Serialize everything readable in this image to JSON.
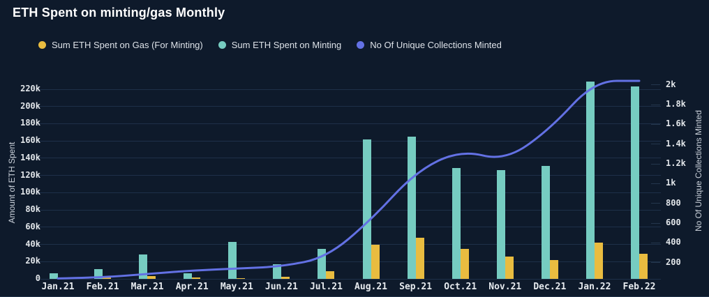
{
  "title": "ETH Spent on minting/gas Monthly",
  "legend": [
    {
      "label": "Sum ETH Spent on Gas (For Minting)",
      "color": "#e9bc40"
    },
    {
      "label": "Sum ETH Spent on Minting",
      "color": "#76ccc1"
    },
    {
      "label": "No Of Unique Collections Minted",
      "color": "#6371e4"
    }
  ],
  "axes": {
    "left": {
      "title": "Amount of ETH Spent",
      "ticks": [
        "0",
        "20k",
        "40k",
        "60k",
        "80k",
        "100k",
        "120k",
        "140k",
        "160k",
        "180k",
        "200k",
        "220k"
      ],
      "range": [
        0,
        220000
      ]
    },
    "right": {
      "title": "No Of Unique Collections Minted",
      "ticks": [
        "200",
        "400",
        "600",
        "800",
        "1k",
        "1.2k",
        "1.4k",
        "1.6k",
        "1.8k",
        "2k"
      ],
      "range": [
        0,
        2000
      ]
    }
  },
  "chart_data": {
    "type": "bar+line",
    "title": "ETH Spent on minting/gas Monthly",
    "categories": [
      "Jan.21",
      "Feb.21",
      "Mar.21",
      "Apr.21",
      "May.21",
      "Jun.21",
      "Jul.21",
      "Aug.21",
      "Sep.21",
      "Oct.21",
      "Nov.21",
      "Dec.21",
      "Jan.22",
      "Feb.22"
    ],
    "xlabel": "",
    "ylabel_left": "Amount of ETH Spent",
    "ylabel_right": "No Of Unique Collections Minted",
    "ylim_left": [
      0,
      220000
    ],
    "ylim_right": [
      0,
      2000
    ],
    "grid": "horizontal",
    "legend_position": "top",
    "background": "#0e1a2b",
    "series": [
      {
        "name": "Sum ETH Spent on Gas (For Minting)",
        "type": "bar",
        "axis": "left",
        "color": "#e9bc40",
        "values": [
          1200,
          1500,
          3500,
          1400,
          1200,
          2700,
          8700,
          40000,
          48000,
          35000,
          26000,
          22000,
          42000,
          29000
        ]
      },
      {
        "name": "Sum ETH Spent on Minting",
        "type": "bar",
        "axis": "left",
        "color": "#76ccc1",
        "values": [
          6500,
          11300,
          28500,
          6200,
          43000,
          16700,
          35000,
          162000,
          165000,
          129000,
          126000,
          131000,
          229000,
          223000
        ]
      },
      {
        "name": "No Of Unique Collections Minted",
        "type": "line",
        "axis": "right",
        "color": "#6371e4",
        "values": [
          40,
          50,
          85,
          120,
          140,
          160,
          250,
          630,
          1120,
          1340,
          1230,
          1550,
          2040,
          2040
        ]
      }
    ]
  }
}
